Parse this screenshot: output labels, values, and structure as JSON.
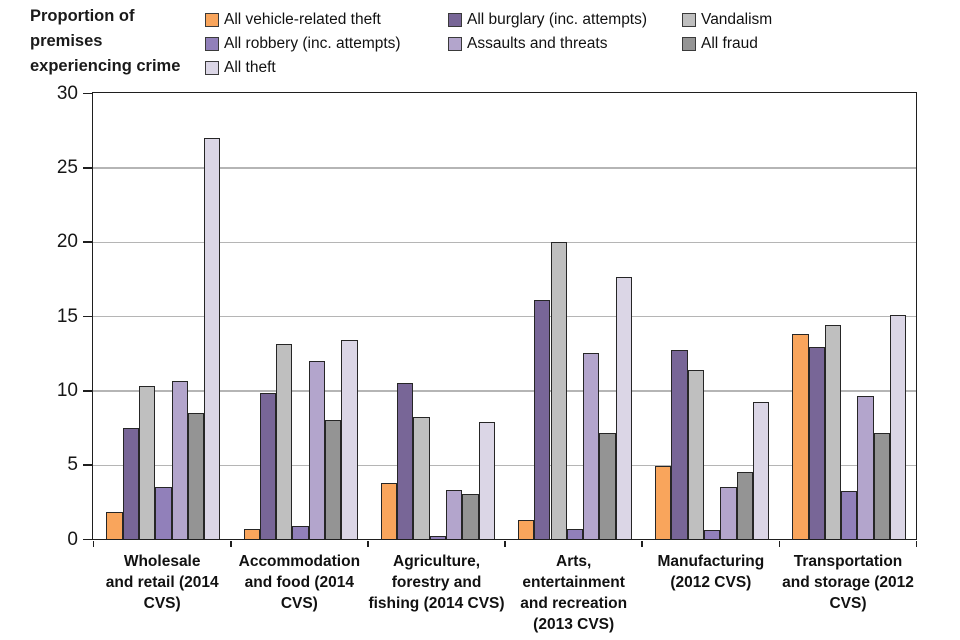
{
  "title": {
    "line1": "Proportion of",
    "line2": "premises",
    "line3": "experiencing crime"
  },
  "chart_data": {
    "type": "bar",
    "title": "Proportion of premises experiencing crime",
    "xlabel": "",
    "ylabel": "",
    "ylim": [
      0,
      30
    ],
    "ytick_step": 5,
    "grid": true,
    "legend_position": "top",
    "categories": [
      "Wholesale and retail (2014 CVS)",
      "Accommodation and food (2014 CVS)",
      "Agriculture, forestry and fishing (2014 CVS)",
      "Arts, entertainment and recreation (2013 CVS)",
      "Manufacturing (2012 CVS)",
      "Transportation and storage (2012 CVS)"
    ],
    "category_label_lines": [
      "Wholesale\nand retail (2014\nCVS)",
      "Accommodation\nand food (2014\nCVS)",
      "Agriculture,\nforestry and\nfishing (2014 CVS)",
      "Arts,\nentertainment\nand recreation\n(2013 CVS)",
      "Manufacturing\n(2012 CVS)",
      "Transportation\nand storage (2012\nCVS)"
    ],
    "series": [
      {
        "name": "All vehicle-related theft",
        "color": "#F9A55C",
        "values": [
          1.8,
          0.7,
          3.8,
          1.3,
          4.9,
          13.8
        ]
      },
      {
        "name": "All burglary (inc. attempts)",
        "color": "#786697",
        "values": [
          7.5,
          9.8,
          10.5,
          16.1,
          12.7,
          12.9
        ]
      },
      {
        "name": "Vandalism",
        "color": "#BFBFBF",
        "values": [
          10.3,
          13.1,
          8.2,
          20.0,
          11.4,
          14.4
        ]
      },
      {
        "name": "All robbery (inc. attempts)",
        "color": "#9180BA",
        "values": [
          3.5,
          0.9,
          0.2,
          0.7,
          0.6,
          3.2
        ]
      },
      {
        "name": "Assaults and threats",
        "color": "#B3A5CC",
        "values": [
          10.6,
          12.0,
          3.3,
          12.5,
          3.5,
          9.6
        ]
      },
      {
        "name": "All fraud",
        "color": "#949494",
        "values": [
          8.5,
          8.0,
          3.0,
          7.1,
          4.5,
          7.1
        ]
      },
      {
        "name": "All theft",
        "color": "#DBD6E6",
        "values": [
          27.0,
          13.4,
          7.9,
          17.6,
          9.2,
          15.1
        ]
      }
    ],
    "axis_color": "#1f1f1f",
    "gridline_color": "#b5b5b5",
    "bar_outline_color": "#262626"
  }
}
